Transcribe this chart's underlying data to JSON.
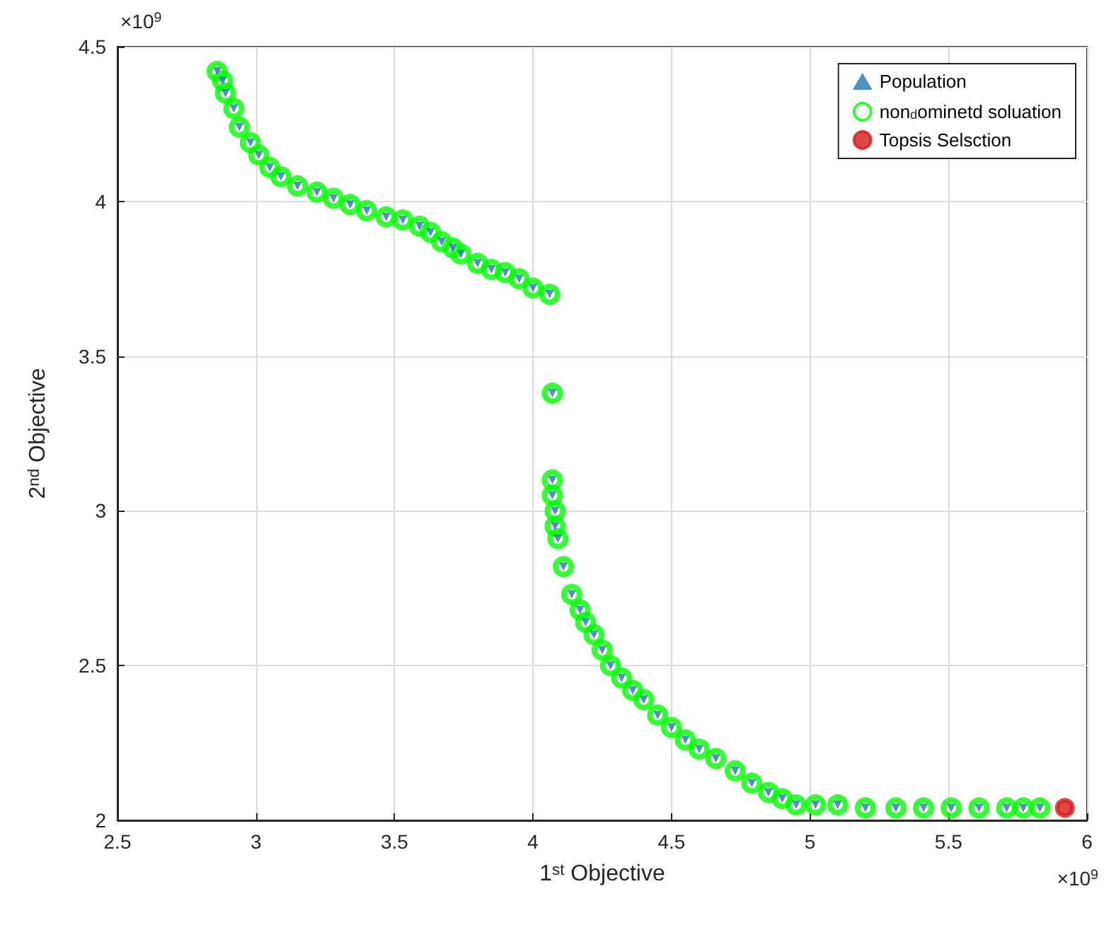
{
  "chart_data": {
    "type": "scatter",
    "xlabel": "1$^{st}$ Objective",
    "ylabel": "2$^{nd}$ Objective",
    "annotations": [
      "×10$^{9}$",
      "×10$^{9}$"
    ],
    "xlim": [
      2.5,
      6
    ],
    "xticks": [
      2.5,
      3,
      3.5,
      4,
      4.5,
      5,
      5.5,
      6
    ],
    "ylim": [
      2,
      4.5
    ],
    "yticks": [
      2,
      2.5,
      3,
      3.5,
      4,
      4.5
    ],
    "grid": true,
    "legend": "top right",
    "series": [
      {
        "name": "non$_{d}$ominetd soluation",
        "color": "#00ff00",
        "marker": "circle",
        "x": [
          2.86,
          2.88,
          2.89,
          2.92,
          2.94,
          2.98,
          3.01,
          3.05,
          3.09,
          3.15,
          3.22,
          3.28,
          3.34,
          3.4,
          3.47,
          3.53,
          3.59,
          3.63,
          3.67,
          3.71,
          3.74,
          3.8,
          3.85,
          3.9,
          3.95,
          4.0,
          4.06,
          4.07,
          4.07,
          4.07,
          4.08,
          4.08,
          4.09,
          4.11,
          4.14,
          4.17,
          4.19,
          4.22,
          4.25,
          4.28,
          4.32,
          4.36,
          4.4,
          4.45,
          4.5,
          4.55,
          4.6,
          4.66,
          4.73,
          4.79,
          4.85,
          4.9,
          4.95,
          5.02,
          5.1,
          5.2,
          5.31,
          5.41,
          5.51,
          5.61,
          5.71,
          5.77,
          5.83
        ],
        "values": [
          4.42,
          4.39,
          4.35,
          4.3,
          4.24,
          4.19,
          4.15,
          4.11,
          4.08,
          4.05,
          4.03,
          4.01,
          3.99,
          3.97,
          3.95,
          3.94,
          3.92,
          3.9,
          3.87,
          3.85,
          3.83,
          3.8,
          3.78,
          3.77,
          3.75,
          3.72,
          3.7,
          3.38,
          3.1,
          3.05,
          3.0,
          2.95,
          2.91,
          2.82,
          2.73,
          2.68,
          2.64,
          2.6,
          2.55,
          2.5,
          2.46,
          2.42,
          2.39,
          2.34,
          2.3,
          2.26,
          2.23,
          2.2,
          2.16,
          2.12,
          2.09,
          2.07,
          2.05,
          2.05,
          2.05,
          2.04,
          2.04,
          2.04,
          2.04,
          2.04,
          2.04,
          2.04,
          2.04
        ]
      },
      {
        "name": "Population",
        "color": "#1f77b4",
        "marker": "triangle",
        "x": [
          2.86,
          2.88,
          2.89,
          2.92,
          2.94,
          2.98,
          3.01,
          3.05,
          3.09,
          3.15,
          3.22,
          3.28,
          3.34,
          3.4,
          3.47,
          3.53,
          3.59,
          3.63,
          3.67,
          3.71,
          3.74,
          3.8,
          3.85,
          3.9,
          3.95,
          4.0,
          4.06,
          4.07,
          4.07,
          4.07,
          4.08,
          4.08,
          4.09,
          4.11,
          4.14,
          4.17,
          4.19,
          4.22,
          4.25,
          4.28,
          4.32,
          4.36,
          4.4,
          4.45,
          4.5,
          4.55,
          4.6,
          4.66,
          4.73,
          4.79,
          4.85,
          4.9,
          4.95,
          5.02,
          5.1,
          5.2,
          5.31,
          5.41,
          5.51,
          5.61,
          5.71,
          5.77,
          5.83
        ],
        "values": [
          4.42,
          4.39,
          4.35,
          4.3,
          4.24,
          4.19,
          4.15,
          4.11,
          4.08,
          4.05,
          4.03,
          4.01,
          3.99,
          3.97,
          3.95,
          3.94,
          3.92,
          3.9,
          3.87,
          3.85,
          3.83,
          3.8,
          3.78,
          3.77,
          3.75,
          3.72,
          3.7,
          3.38,
          3.1,
          3.05,
          3.0,
          2.95,
          2.91,
          2.82,
          2.73,
          2.68,
          2.64,
          2.6,
          2.55,
          2.5,
          2.46,
          2.42,
          2.39,
          2.34,
          2.3,
          2.26,
          2.23,
          2.2,
          2.16,
          2.12,
          2.09,
          2.07,
          2.05,
          2.05,
          2.05,
          2.04,
          2.04,
          2.04,
          2.04,
          2.04,
          2.04,
          2.04,
          2.04
        ]
      },
      {
        "name": "Topsis Selsction",
        "color": "#d7191c",
        "marker": "circle",
        "x": [
          5.92
        ],
        "values": [
          2.04
        ]
      }
    ]
  }
}
